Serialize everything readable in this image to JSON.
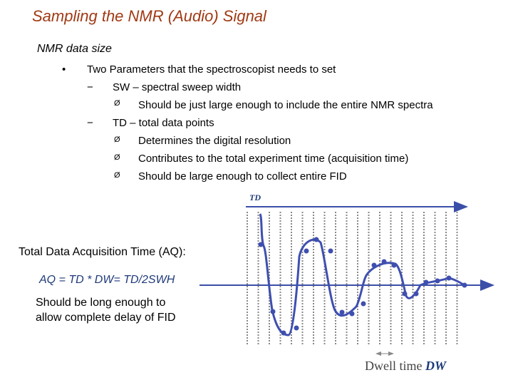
{
  "title": "Sampling the NMR (Audio) Signal",
  "subtitle": "NMR data size",
  "bullets": {
    "l1_marker": "•",
    "l1_text": "Two Parameters that the spectroscopist needs to set",
    "dash": "−",
    "arrow": "Ø",
    "sw_text": "SW – spectral sweep width",
    "sw_sub1": "Should be just large enough to include the entire NMR spectra",
    "td_text": "TD – total data points",
    "td_sub1": "Determines the digital resolution",
    "td_sub2": "Contributes to the total experiment time (acquisition time)",
    "td_sub3": "Should be large enough to collect entire FID"
  },
  "diagram": {
    "td_label": "TD",
    "aq_title": "Total Data Acquisition Time (AQ):",
    "aq_equation": "AQ = TD * DW= TD/2SWH",
    "aq_note_line1": "Should be long enough to",
    "aq_note_line2": "allow complete delay of FID",
    "dwell_prefix": "Dwell time ",
    "dwell_symbol": "DW",
    "colors": {
      "signal": "#3f4fb0",
      "arrow": "#3b4fa8",
      "title": "#a03a14",
      "grid": "#888888"
    }
  }
}
